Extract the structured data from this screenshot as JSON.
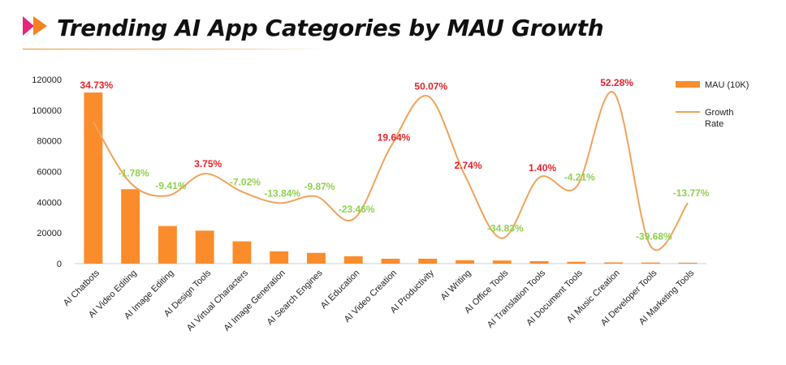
{
  "title": "Trending AI App Categories by MAU Growth",
  "colors": {
    "bar": "#fb8c2b",
    "line": "#f0a35a",
    "positive": "#e8232a",
    "negative": "#8fd14f",
    "logo_pink": "#e8237a",
    "logo_orange": "#f58220"
  },
  "chart_data": {
    "type": "bar",
    "categories": [
      "AI Chatbots",
      "AI Video Editing",
      "AI Image Editing",
      "AI Design Tools",
      "AI Virtual Characters",
      "AI Image Generation",
      "AI Search Engines",
      "AI Education",
      "AI Video Creation",
      "AI Productivity",
      "AI Writing",
      "AI Office Tools",
      "AI Translation Tools",
      "AI Document Tools",
      "AI Music Creation",
      "AI Developer Tools",
      "AI Marketing Tools"
    ],
    "series": [
      {
        "name": "MAU (10K)",
        "type": "bar",
        "axis": "left",
        "values": [
          111500,
          48500,
          24500,
          21500,
          14500,
          8000,
          7000,
          4800,
          3200,
          3200,
          2200,
          2000,
          1600,
          1200,
          800,
          700,
          600
        ]
      },
      {
        "name": "Growth Rate",
        "type": "line",
        "axis": "right",
        "smooth": true,
        "values": [
          34.73,
          -1.78,
          -9.41,
          3.75,
          -7.02,
          -13.84,
          -9.87,
          -23.46,
          19.64,
          50.07,
          2.74,
          -34.83,
          1.4,
          -4.21,
          52.28,
          -39.68,
          -13.77
        ],
        "labels": [
          "34.73%",
          "-1.78%",
          "-9.41%",
          "3.75%",
          "-7.02%",
          "-13.84%",
          "-9.87%",
          "-23.46%",
          "19.64%",
          "50.07%",
          "2.74%",
          "-34.83%",
          "1.40%",
          "-4.21%",
          "52.28%",
          "-39.68%",
          "-13.77%"
        ]
      }
    ],
    "yticks": [
      "0",
      "20000",
      "40000",
      "60000",
      "80000",
      "100000",
      "120000"
    ],
    "ylim": [
      0,
      120000
    ],
    "y2lim": [
      -50,
      60
    ],
    "legend_position": "top-right",
    "grid": false
  }
}
